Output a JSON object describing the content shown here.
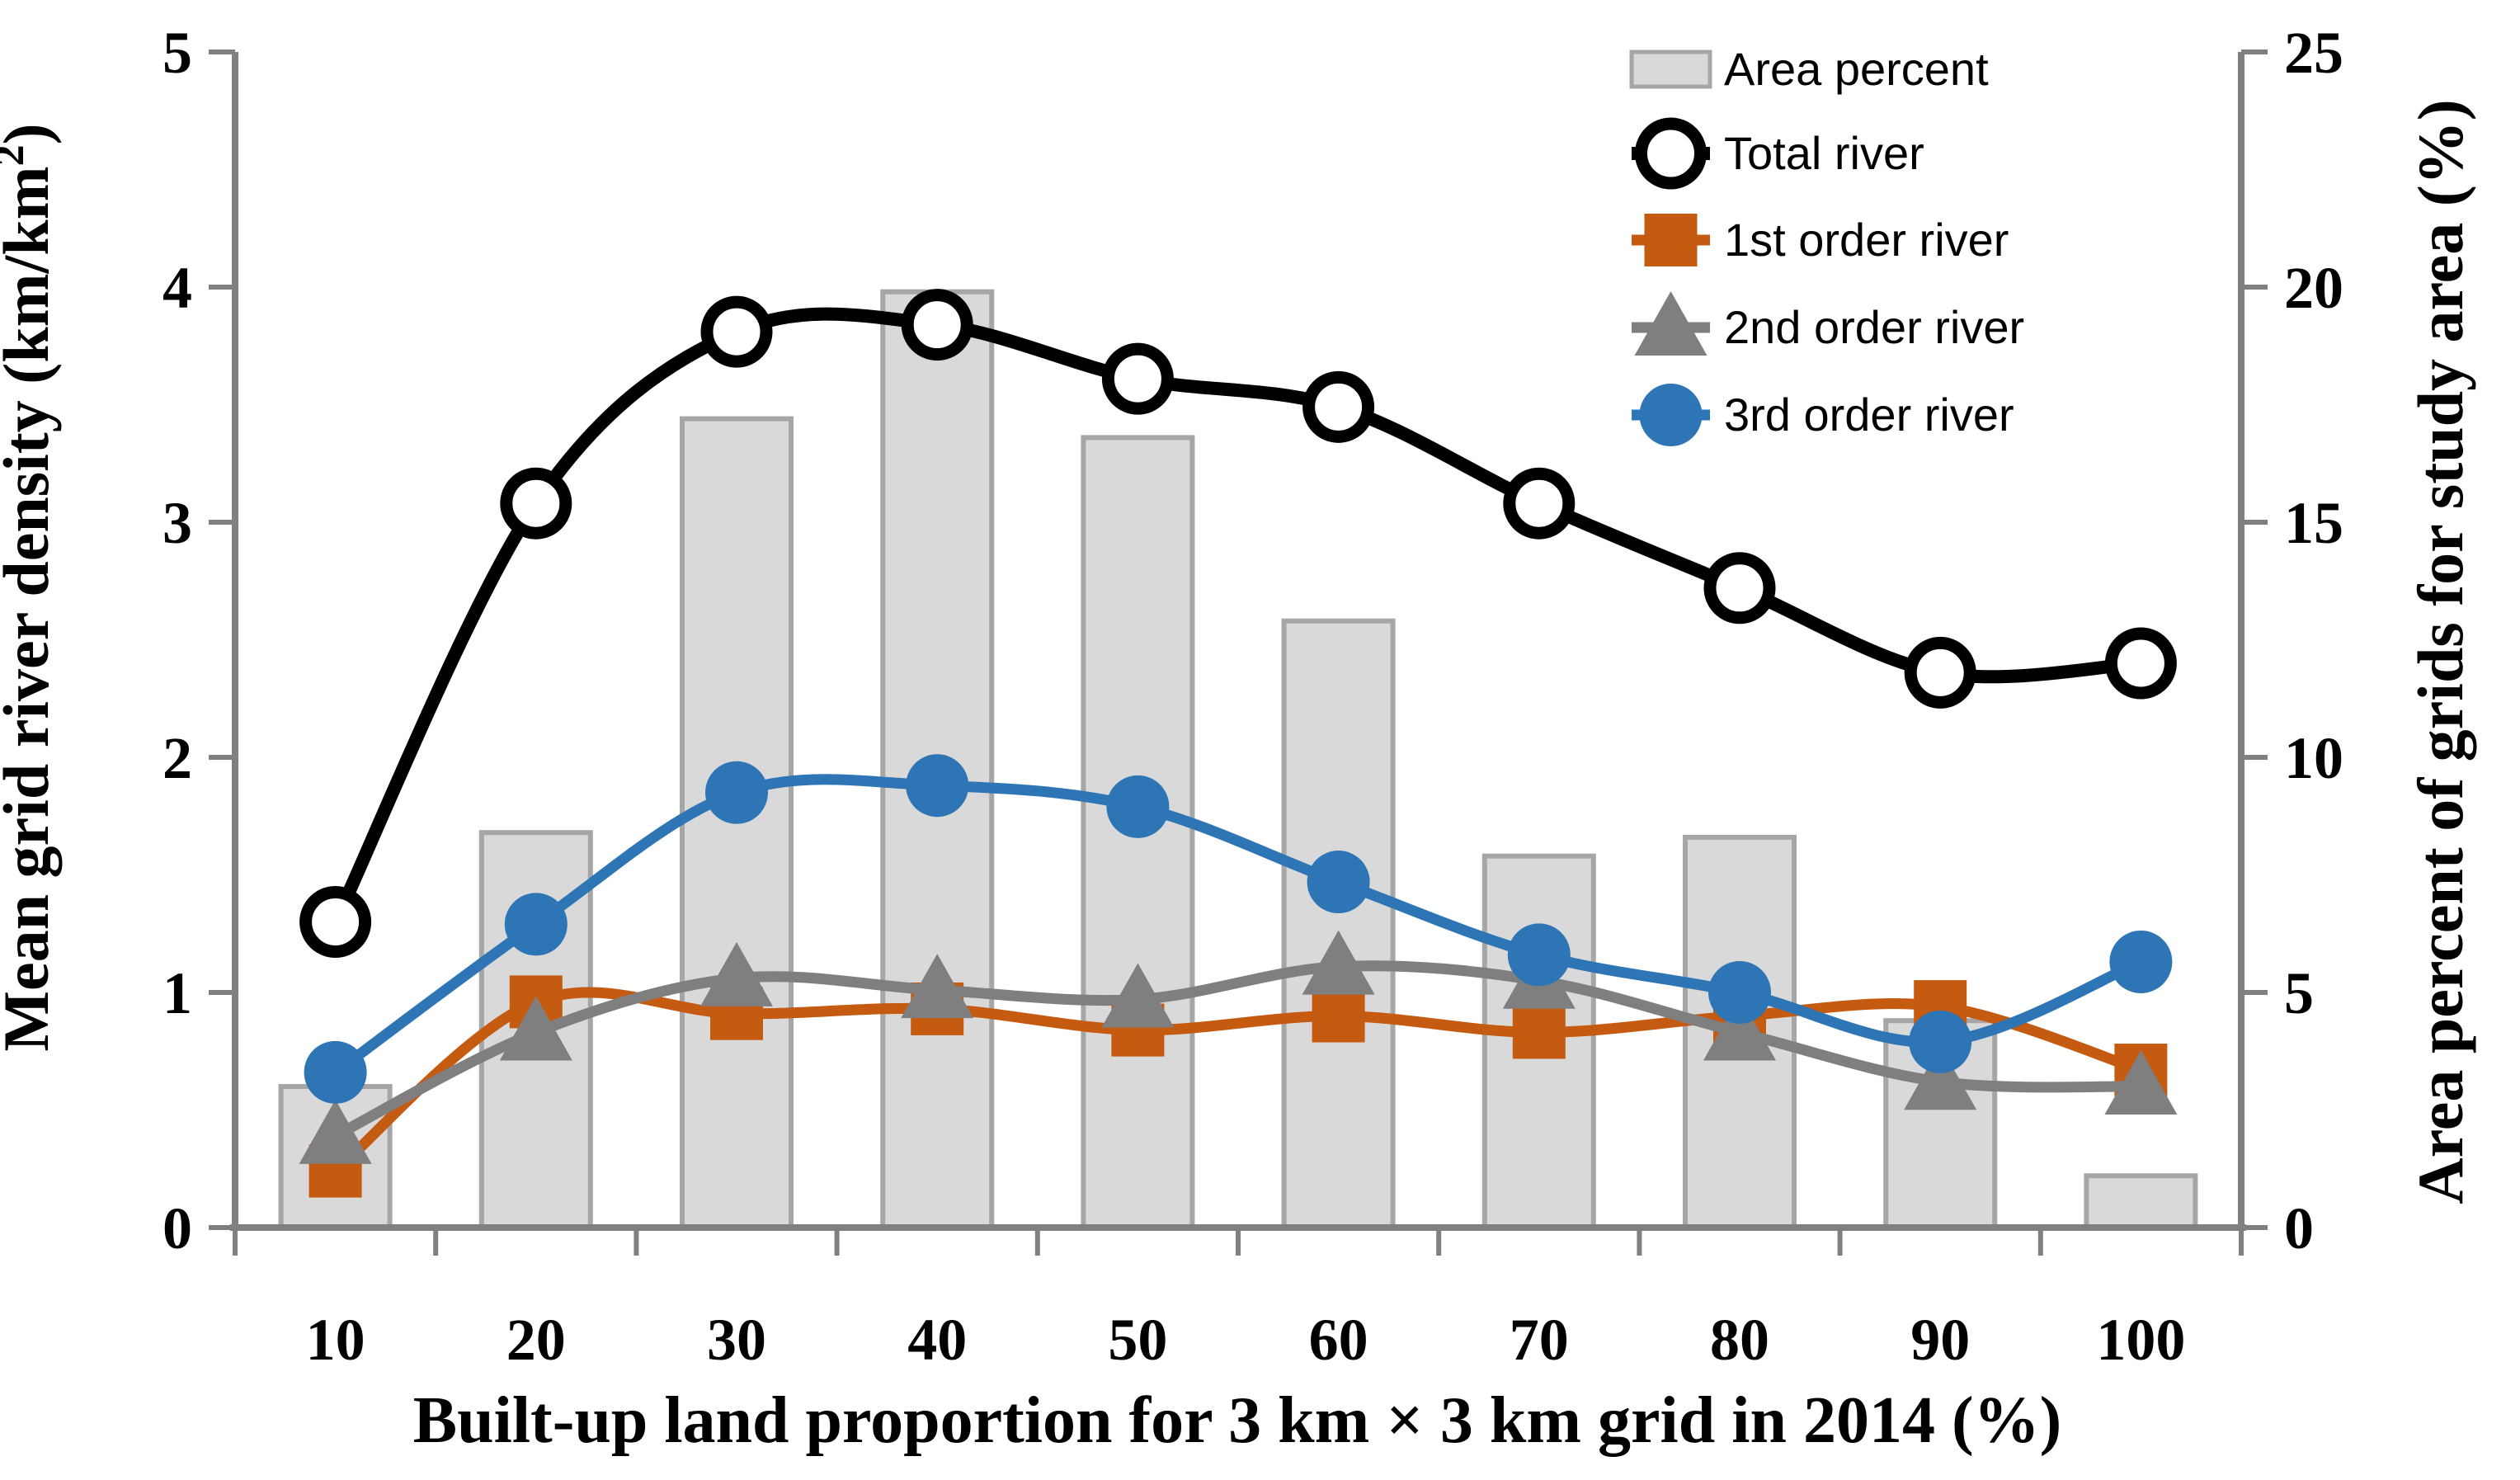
{
  "figure": {
    "background": "#FFFFFF"
  },
  "chart_data": {
    "type": "combo",
    "title": "",
    "x_categories": [
      10,
      20,
      30,
      40,
      50,
      60,
      70,
      80,
      90,
      100
    ],
    "xlabel": "Built-up land proportion for 3 km × 3 km grid in 2014 (%)",
    "left_axis": {
      "label_main": "Mean grid river density (km/km",
      "label_sup": "2",
      "label_close": ")",
      "ticks": [
        0,
        1,
        2,
        3,
        4,
        5
      ],
      "range": [
        0,
        5
      ]
    },
    "right_axis": {
      "label": "Area percent of grids for study area  (%)",
      "ticks": [
        0,
        5,
        10,
        15,
        20,
        25
      ],
      "range": [
        0,
        25
      ]
    },
    "grid": false,
    "legend_position": "top-right-inside",
    "axis_color": "#808080",
    "bar_series": {
      "name": "Area percent",
      "axis": "right",
      "fill": "#D9D9D9",
      "stroke": "#A6A6A6",
      "values": [
        3.0,
        8.4,
        17.2,
        19.9,
        16.8,
        12.9,
        7.9,
        8.3,
        4.4,
        1.1
      ]
    },
    "line_series": [
      {
        "name": "Total river",
        "axis": "left",
        "color": "#000000",
        "marker": "circle-open",
        "values": [
          1.3,
          3.08,
          3.81,
          3.84,
          3.61,
          3.49,
          3.08,
          2.72,
          2.36,
          2.4
        ]
      },
      {
        "name": "1st order river",
        "axis": "left",
        "color": "#C55A11",
        "marker": "square",
        "values": [
          0.24,
          0.96,
          0.91,
          0.93,
          0.84,
          0.9,
          0.83,
          0.9,
          0.94,
          0.67
        ]
      },
      {
        "name": "2nd order river",
        "axis": "left",
        "color": "#7F7F7F",
        "marker": "triangle",
        "values": [
          0.39,
          0.83,
          1.06,
          1.01,
          0.97,
          1.11,
          1.05,
          0.83,
          0.62,
          0.6
        ]
      },
      {
        "name": "3rd order river",
        "axis": "left",
        "color": "#2E75B6",
        "marker": "circle",
        "values": [
          0.66,
          1.29,
          1.85,
          1.88,
          1.79,
          1.47,
          1.16,
          1.0,
          0.79,
          1.13
        ]
      }
    ],
    "legend_labels": [
      "Area percent",
      "Total river",
      "1st order river",
      "2nd order river",
      "3rd order river"
    ]
  }
}
